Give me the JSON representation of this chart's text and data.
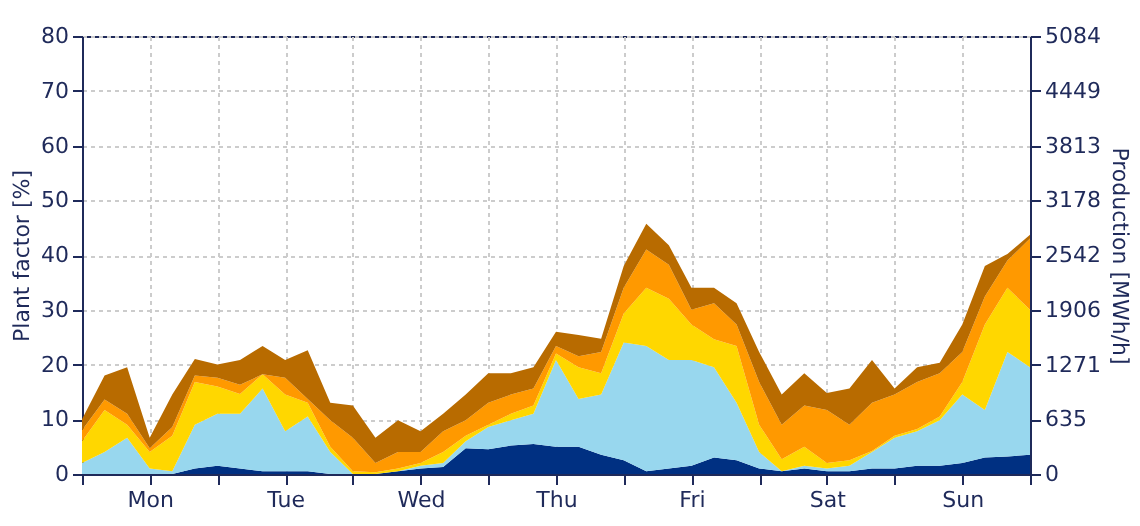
{
  "chart_data": {
    "type": "area",
    "stacked": true,
    "ylabel": "Plant factor [%]",
    "y2label": "Production [MWh/h]",
    "categories": [
      null,
      null,
      null,
      "Mon",
      null,
      null,
      null,
      null,
      null,
      "Tue",
      null,
      null,
      null,
      null,
      null,
      "Wed",
      null,
      null,
      null,
      null,
      null,
      "Thu",
      null,
      null,
      null,
      null,
      null,
      "Fri",
      null,
      null,
      null,
      null,
      null,
      "Sat",
      null,
      null,
      null,
      null,
      null,
      "Sun",
      null,
      null,
      null
    ],
    "ylim": [
      0,
      80
    ],
    "yticks": [
      0,
      10,
      20,
      30,
      40,
      50,
      60,
      70,
      80
    ],
    "y2lim": [
      0,
      5084
    ],
    "y2ticks": [
      0,
      {
        "value": 635.5,
        "label": "635"
      },
      1271,
      {
        "value": 1906.5,
        "label": "1906"
      },
      2542,
      {
        "value": 3177.5,
        "label": "3178"
      },
      3813,
      {
        "value": 4448.5,
        "label": "4449"
      },
      5084
    ],
    "grid": true,
    "legend": false,
    "series": [
      {
        "color": "#003082",
        "values": [
          0,
          0,
          0,
          0,
          0,
          1,
          1.5,
          1,
          0.5,
          0.5,
          0.5,
          0,
          0,
          0,
          0.5,
          1,
          1.3,
          4.7,
          4.5,
          5.2,
          5.5,
          5,
          5,
          3.5,
          2.5,
          0.5,
          1,
          1.5,
          3,
          2.5,
          1,
          0.5,
          1,
          0.5,
          0.5,
          1,
          1,
          1.5,
          1.5,
          2,
          3,
          3.2,
          3.5
        ]
      },
      {
        "color": "#98d7ee",
        "values": [
          2,
          4,
          6.6,
          1,
          0.5,
          8,
          9.5,
          10,
          15.1,
          7.3,
          10,
          4,
          0,
          0,
          0,
          0.5,
          0.7,
          1.3,
          4.1,
          4.6,
          5.5,
          15.8,
          8.7,
          11,
          21.5,
          22.9,
          19.8,
          19.3,
          16.5,
          10.5,
          3,
          0,
          0.5,
          0.5,
          1,
          3,
          5.6,
          6.3,
          8.3,
          12.5,
          8.7,
          19.1,
          16
        ]
      },
      {
        "color": "#ffd700",
        "values": [
          4,
          7.7,
          2.4,
          3,
          6.5,
          7.8,
          5,
          3.6,
          2.6,
          6.7,
          2.5,
          1,
          0.5,
          0.3,
          0.5,
          0.5,
          2,
          1,
          0.4,
          1.2,
          1.5,
          1.2,
          5.8,
          3.9,
          5.3,
          10.6,
          11.2,
          6.5,
          5.1,
          10.4,
          5,
          2.2,
          3.5,
          1,
          1,
          0.2,
          0.4,
          0.4,
          0.7,
          2.3,
          15.6,
          11.7,
          10.5
        ]
      },
      {
        "color": "#ff9900",
        "values": [
          2,
          1.9,
          2,
          0.7,
          1.6,
          1.2,
          1.6,
          1.7,
          0,
          3.1,
          0.7,
          4.8,
          6.1,
          1.7,
          3,
          2,
          3.8,
          2.8,
          4,
          3.5,
          3.1,
          1.4,
          2,
          3.9,
          4.7,
          7,
          6.2,
          2.7,
          6.6,
          3.9,
          7.8,
          6.3,
          7.5,
          9.7,
          6.5,
          8.8,
          7.5,
          8.6,
          7.9,
          5.5,
          5.1,
          5,
          13
        ]
      },
      {
        "color": "#b86b00",
        "values": [
          2,
          4.4,
          8.5,
          1.9,
          5.9,
          3,
          2.4,
          4.5,
          5.2,
          3.2,
          8.9,
          3.2,
          5.9,
          4.6,
          5.8,
          3.8,
          3.2,
          4.7,
          5.4,
          3.9,
          3.9,
          2.6,
          3.9,
          2.4,
          4,
          4.7,
          3.6,
          4,
          2.8,
          3.9,
          5.5,
          5.5,
          5.9,
          3.1,
          6.6,
          7.8,
          1.1,
          2.7,
          1.9,
          5,
          5.6,
          1.2,
          0.7
        ]
      }
    ]
  }
}
